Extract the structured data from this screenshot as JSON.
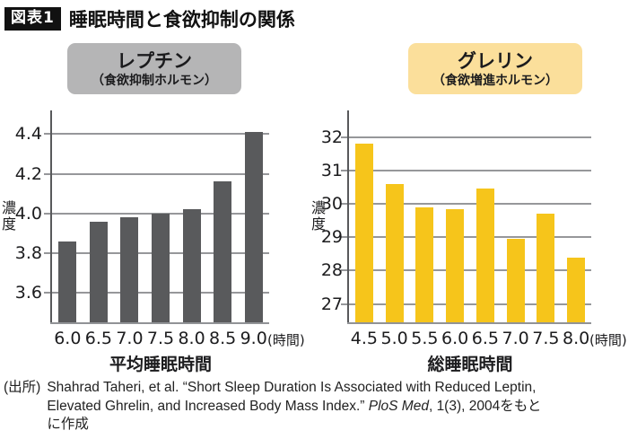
{
  "header": {
    "badge": "図表1",
    "title": "睡眠時間と食欲抑制の関係"
  },
  "chart_data": [
    {
      "type": "bar",
      "title": "レプチン",
      "subtitle": "（食欲抑制ホルモン）",
      "ylabel": "濃度",
      "xlabel": "平均睡眠時間",
      "x_unit": "(時間)",
      "categories": [
        "6.0",
        "6.5",
        "7.0",
        "7.5",
        "8.0",
        "8.5",
        "9.0"
      ],
      "values": [
        3.86,
        3.96,
        3.98,
        4.0,
        4.02,
        4.16,
        4.41
      ],
      "yticks": [
        "3.6",
        "3.8",
        "4.0",
        "4.2",
        "4.4"
      ],
      "ytick_values": [
        3.6,
        3.8,
        4.0,
        4.2,
        4.4
      ],
      "ylim": [
        3.45,
        4.52
      ],
      "grid": true,
      "legend_position": "none",
      "bar_color": "#595A5C",
      "badge_bg": "#B5B5B6"
    },
    {
      "type": "bar",
      "title": "グレリン",
      "subtitle": "（食欲増進ホルモン）",
      "ylabel": "濃度",
      "xlabel": "総睡眠時間",
      "x_unit": "(時間)",
      "categories": [
        "4.5",
        "5.0",
        "5.5",
        "6.0",
        "6.5",
        "7.0",
        "7.5",
        "8.0"
      ],
      "values": [
        31.8,
        30.6,
        29.9,
        29.85,
        30.45,
        28.95,
        29.7,
        28.4
      ],
      "yticks": [
        "27",
        "28",
        "29",
        "30",
        "31",
        "32"
      ],
      "ytick_values": [
        27,
        28,
        29,
        30,
        31,
        32
      ],
      "ylim": [
        26.45,
        32.8
      ],
      "grid": true,
      "legend_position": "none",
      "bar_color": "#F6C51B",
      "badge_bg": "#FBDF9B"
    }
  ],
  "source": {
    "label": "(出所)",
    "line1": "Shahrad Taheri, et al. “Short Sleep Duration Is Associated with Reduced Leptin,",
    "line2_pre": "Elevated Ghrelin, and Increased Body Mass Index.” ",
    "line2_italic": "PloS Med",
    "line2_post": ", 1(3), 2004をもと",
    "line3": "に作成"
  },
  "colors": {
    "leptin_bar": "#595A5C",
    "ghrelin_bar": "#F6C51B",
    "leptin_badge_bg": "#B5B5B6",
    "ghrelin_badge_bg": "#FBDF9B",
    "gridline": "#96979A",
    "figure_badge_bg": "#111111"
  }
}
